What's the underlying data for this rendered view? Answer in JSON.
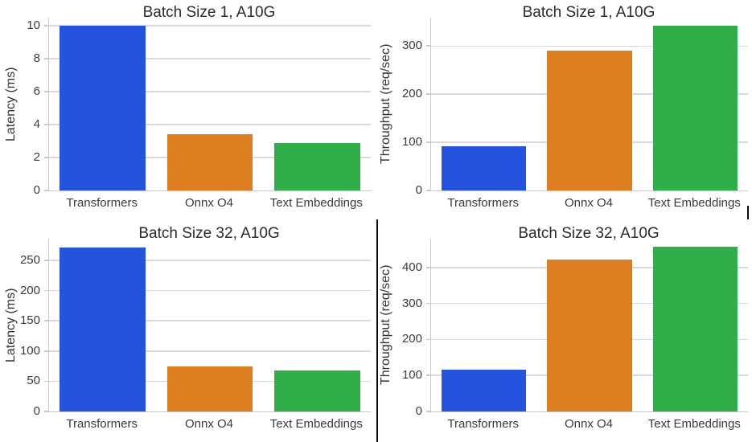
{
  "style": {
    "background": "#ffffff",
    "grid_color": "#d9d9d9",
    "spine_color": "#c9c9c9",
    "text_color": "#262626",
    "divider_color": "#0d0d0d"
  },
  "bar_colors": [
    "#2453dd",
    "#de7e21",
    "#2fae4a"
  ],
  "chart_data": [
    {
      "type": "bar",
      "title": "Batch Size 1, A10G",
      "ylabel": "Latency (ms)",
      "xlabel": "",
      "categories": [
        "Transformers",
        "Onnx O4",
        "Text Embeddings"
      ],
      "values": [
        10,
        3.4,
        2.9
      ],
      "yticks": [
        0,
        2,
        4,
        6,
        8,
        10
      ],
      "ylim": [
        0,
        10.5
      ],
      "grid": true,
      "legend": "none"
    },
    {
      "type": "bar",
      "title": "Batch Size 1, A10G",
      "ylabel": "Throughput (req/sec)",
      "xlabel": "",
      "categories": [
        "Transformers",
        "Onnx O4",
        "Text Embeddings"
      ],
      "values": [
        92,
        290,
        342
      ],
      "yticks": [
        0,
        100,
        200,
        300
      ],
      "ylim": [
        0,
        359
      ],
      "grid": true,
      "legend": "none"
    },
    {
      "type": "bar",
      "title": "Batch Size 32, A10G",
      "ylabel": "Latency (ms)",
      "xlabel": "",
      "categories": [
        "Transformers",
        "Onnx O4",
        "Text Embeddings"
      ],
      "values": [
        272,
        74,
        68
      ],
      "yticks": [
        0,
        50,
        100,
        150,
        200,
        250
      ],
      "ylim": [
        0,
        286
      ],
      "grid": true,
      "legend": "none"
    },
    {
      "type": "bar",
      "title": "Batch Size 32, A10G",
      "ylabel": "Throughput (req/sec)",
      "xlabel": "",
      "categories": [
        "Transformers",
        "Onnx O4",
        "Text Embeddings"
      ],
      "values": [
        116,
        421,
        457
      ],
      "yticks": [
        0,
        100,
        200,
        300,
        400
      ],
      "ylim": [
        0,
        480
      ],
      "grid": true,
      "legend": "none"
    }
  ]
}
